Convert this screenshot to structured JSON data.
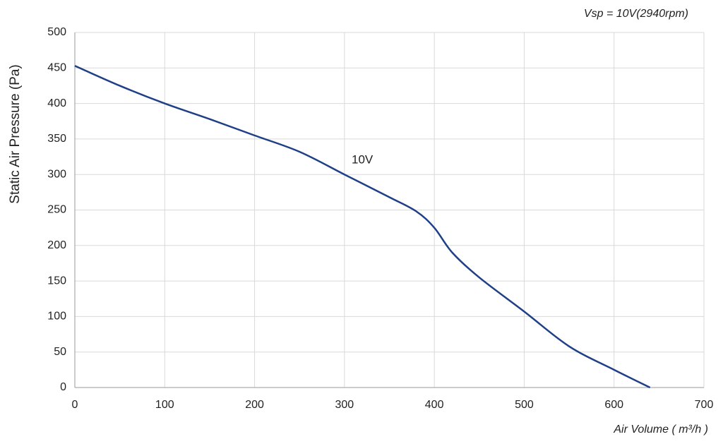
{
  "chart_data": {
    "type": "line",
    "subtitle": "Vsp = 10V(2940rpm)",
    "x_label": "Air Volume ( m³/h )",
    "y_label": "Static Air Pressure  (Pa)",
    "annotation": "10V",
    "x": [
      0,
      50,
      100,
      150,
      200,
      250,
      300,
      350,
      380,
      400,
      420,
      450,
      500,
      550,
      600,
      640
    ],
    "series": [
      {
        "color": "#1f3f87",
        "values": [
          453,
          425,
          400,
          378,
          355,
          332,
          300,
          268,
          248,
          225,
          190,
          155,
          107,
          58,
          25,
          0
        ]
      }
    ],
    "xlim": [
      0,
      700
    ],
    "xticks": [
      0,
      100,
      200,
      300,
      400,
      500,
      600,
      700
    ],
    "ylim": [
      0,
      500
    ],
    "yticks": [
      0,
      50,
      100,
      150,
      200,
      250,
      300,
      350,
      400,
      450,
      500
    ],
    "grid": true
  }
}
